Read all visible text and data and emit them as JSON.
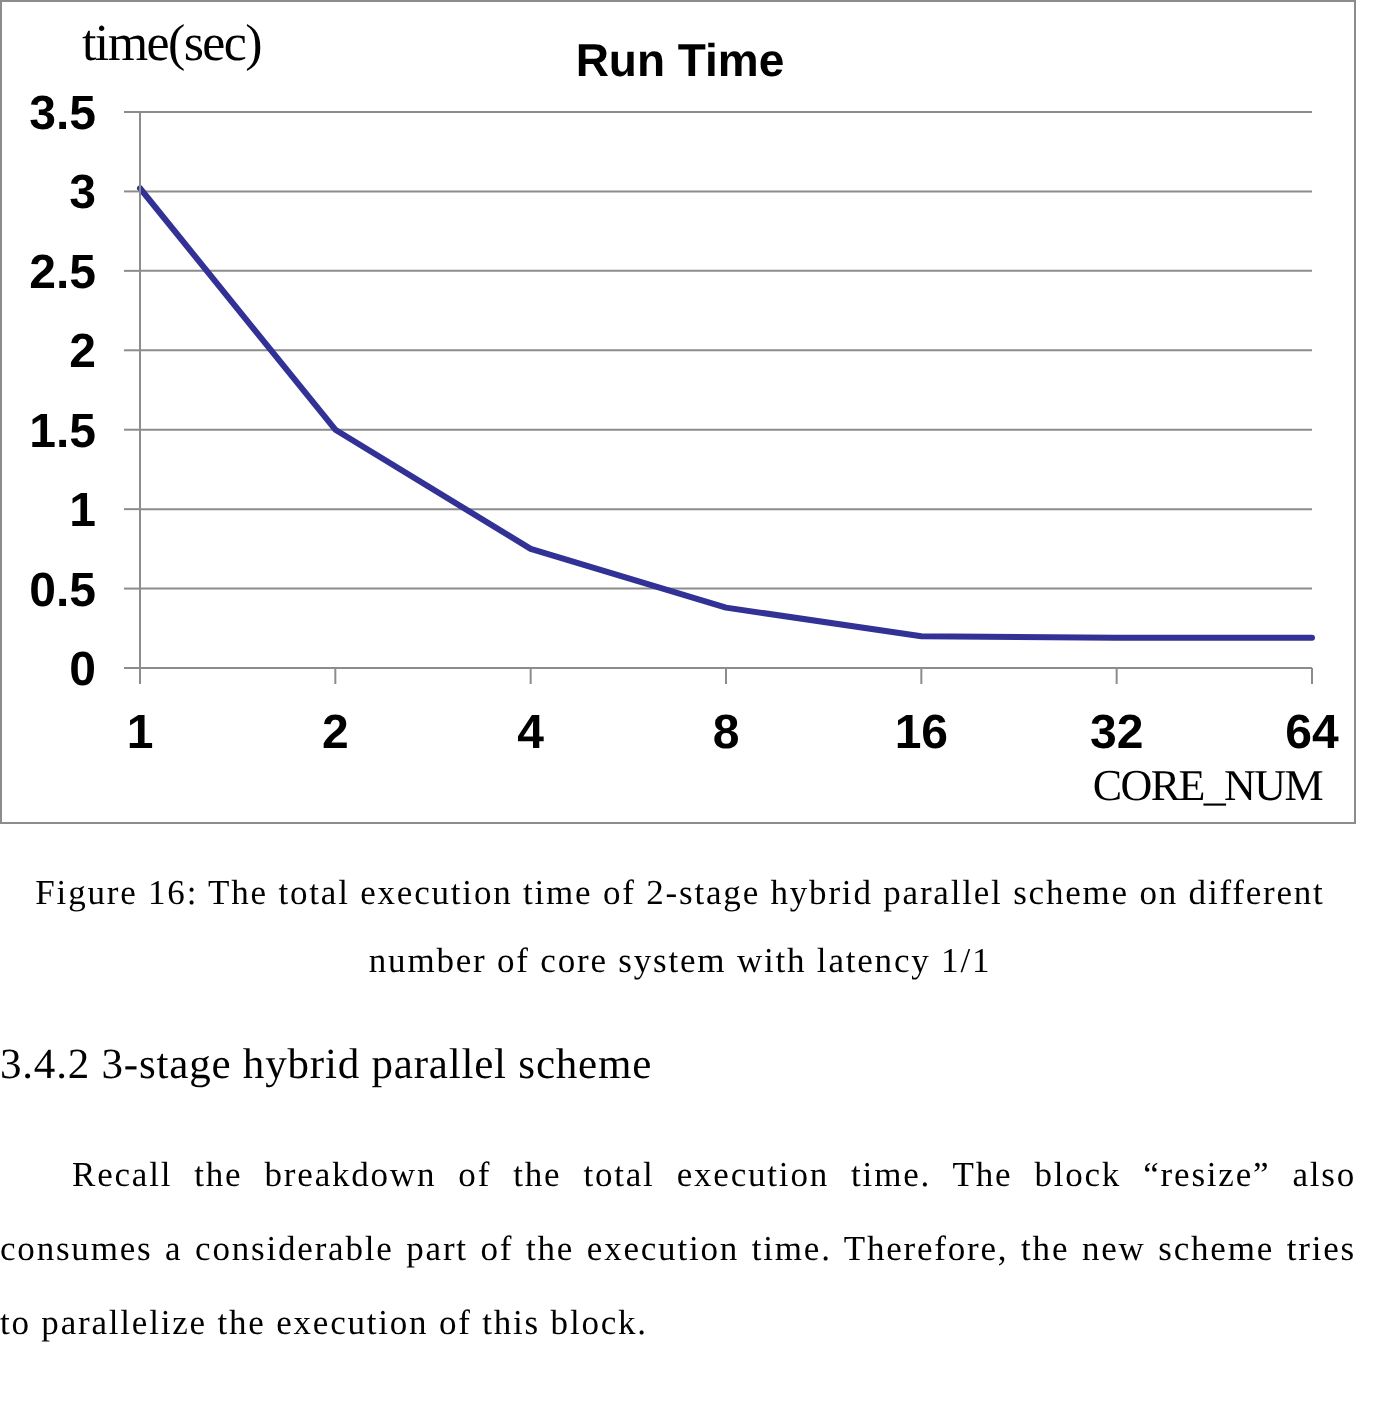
{
  "chart_data": {
    "type": "line",
    "title": "Run Time",
    "xlabel": "CORE_NUM",
    "ylabel": "time(sec)",
    "categories": [
      "1",
      "2",
      "4",
      "8",
      "16",
      "32",
      "64"
    ],
    "series": [
      {
        "color": "#323296",
        "values": [
          3.02,
          1.5,
          0.75,
          0.38,
          0.2,
          0.19,
          0.19
        ]
      }
    ],
    "ylim": [
      0,
      3.5
    ],
    "yticks": [
      0,
      0.5,
      1,
      1.5,
      2,
      2.5,
      3,
      3.5
    ],
    "grid": "y",
    "marker": "none",
    "line_style": "solid",
    "annotations": [
      "Figure 16: The total execution time of 2-stage hybrid parallel scheme on different number of core system with latency 1/1",
      "3.4.2 3-stage hybrid parallel scheme",
      "Recall the breakdown of the total execution time. The block “resize” also consumes a considerable part of the execution time. Therefore, the new scheme tries to parallelize the execution of this block."
    ]
  }
}
